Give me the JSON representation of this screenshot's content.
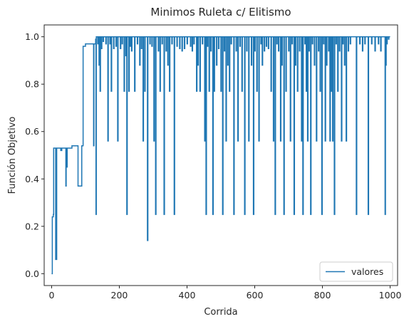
{
  "chart_data": {
    "type": "line",
    "title": "Minimos Ruleta c/ Elitismo",
    "xlabel": "Corrida",
    "ylabel": "Función Objetivo",
    "xlim": [
      -22,
      1022
    ],
    "ylim": [
      -0.05,
      1.05
    ],
    "x_ticks": [
      0,
      200,
      400,
      600,
      800,
      1000
    ],
    "y_ticks": [
      0.0,
      0.2,
      0.4,
      0.6,
      0.8,
      1.0
    ],
    "x_tick_labels": [
      "0",
      "200",
      "400",
      "600",
      "800",
      "1000"
    ],
    "y_tick_labels": [
      "0.0",
      "0.2",
      "0.4",
      "0.6",
      "0.8",
      "1.0"
    ],
    "grid": false,
    "legend_position": "lower-right",
    "line_color": "#1f77b4",
    "series": [
      {
        "name": "valores",
        "base": [
          [
            0,
            0.0
          ],
          [
            2,
            0.24
          ],
          [
            5,
            0.25
          ],
          [
            6,
            0.53
          ],
          [
            10,
            0.53
          ],
          [
            12,
            0.06
          ],
          [
            14,
            0.06
          ],
          [
            15,
            0.53
          ],
          [
            25,
            0.53
          ],
          [
            27,
            0.52
          ],
          [
            30,
            0.53
          ],
          [
            40,
            0.53
          ],
          [
            42,
            0.37
          ],
          [
            43,
            0.53
          ],
          [
            45,
            0.45
          ],
          [
            46,
            0.53
          ],
          [
            55,
            0.53
          ],
          [
            60,
            0.54
          ],
          [
            75,
            0.54
          ],
          [
            78,
            0.37
          ],
          [
            88,
            0.37
          ],
          [
            89,
            0.54
          ],
          [
            92,
            0.54
          ],
          [
            93,
            0.96
          ],
          [
            100,
            0.97
          ],
          [
            120,
            0.97
          ],
          [
            124,
            0.54
          ],
          [
            125,
            0.97
          ],
          [
            130,
            0.99
          ],
          [
            132,
            1.0
          ],
          [
            1000,
            1.0
          ]
        ],
        "dips": [
          [
            131,
            0.25
          ],
          [
            136,
            0.97
          ],
          [
            140,
            0.88
          ],
          [
            143,
            0.77
          ],
          [
            147,
            0.95
          ],
          [
            152,
            0.98
          ],
          [
            160,
            0.97
          ],
          [
            166,
            0.56
          ],
          [
            172,
            0.97
          ],
          [
            176,
            0.77
          ],
          [
            183,
            0.95
          ],
          [
            190,
            0.96
          ],
          [
            195,
            0.56
          ],
          [
            203,
            0.95
          ],
          [
            208,
            0.97
          ],
          [
            214,
            0.77
          ],
          [
            219,
            0.92
          ],
          [
            222,
            0.25
          ],
          [
            228,
            0.77
          ],
          [
            232,
            0.96
          ],
          [
            236,
            0.94
          ],
          [
            245,
            0.77
          ],
          [
            253,
            0.97
          ],
          [
            260,
            0.88
          ],
          [
            265,
            0.95
          ],
          [
            270,
            0.56
          ],
          [
            275,
            0.77
          ],
          [
            283,
            0.14
          ],
          [
            290,
            0.97
          ],
          [
            296,
            0.96
          ],
          [
            302,
            0.56
          ],
          [
            307,
            0.25
          ],
          [
            315,
            0.94
          ],
          [
            320,
            0.77
          ],
          [
            326,
            0.97
          ],
          [
            332,
            0.25
          ],
          [
            338,
            0.94
          ],
          [
            343,
            0.88
          ],
          [
            348,
            0.77
          ],
          [
            355,
            0.97
          ],
          [
            362,
            0.25
          ],
          [
            370,
            0.96
          ],
          [
            378,
            0.95
          ],
          [
            385,
            0.94
          ],
          [
            392,
            0.95
          ],
          [
            400,
            0.97
          ],
          [
            410,
            0.96
          ],
          [
            415,
            0.94
          ],
          [
            420,
            0.97
          ],
          [
            428,
            0.77
          ],
          [
            432,
            0.88
          ],
          [
            438,
            0.77
          ],
          [
            445,
            0.97
          ],
          [
            452,
            0.56
          ],
          [
            456,
            0.25
          ],
          [
            460,
            0.96
          ],
          [
            465,
            0.77
          ],
          [
            470,
            0.94
          ],
          [
            476,
            0.25
          ],
          [
            480,
            0.77
          ],
          [
            487,
            0.88
          ],
          [
            493,
            0.95
          ],
          [
            500,
            0.77
          ],
          [
            505,
            0.25
          ],
          [
            510,
            0.94
          ],
          [
            515,
            0.56
          ],
          [
            520,
            0.88
          ],
          [
            525,
            0.77
          ],
          [
            530,
            0.97
          ],
          [
            538,
            0.25
          ],
          [
            545,
            0.94
          ],
          [
            550,
            0.56
          ],
          [
            556,
            0.96
          ],
          [
            562,
            0.77
          ],
          [
            570,
            0.25
          ],
          [
            576,
            0.94
          ],
          [
            582,
            0.56
          ],
          [
            590,
            0.88
          ],
          [
            596,
            0.25
          ],
          [
            600,
            0.94
          ],
          [
            606,
            0.77
          ],
          [
            612,
            0.56
          ],
          [
            618,
            0.97
          ],
          [
            622,
            0.88
          ],
          [
            628,
            0.94
          ],
          [
            634,
            0.96
          ],
          [
            640,
            0.95
          ],
          [
            648,
            0.77
          ],
          [
            655,
            0.56
          ],
          [
            660,
            0.25
          ],
          [
            665,
            0.97
          ],
          [
            670,
            0.94
          ],
          [
            676,
            0.56
          ],
          [
            680,
            0.88
          ],
          [
            686,
            0.25
          ],
          [
            692,
            0.77
          ],
          [
            700,
            0.94
          ],
          [
            705,
            0.56
          ],
          [
            710,
            0.97
          ],
          [
            716,
            0.25
          ],
          [
            720,
            0.88
          ],
          [
            726,
            0.77
          ],
          [
            732,
            0.94
          ],
          [
            738,
            0.56
          ],
          [
            742,
            0.25
          ],
          [
            748,
            0.97
          ],
          [
            752,
            0.77
          ],
          [
            756,
            0.56
          ],
          [
            760,
            0.94
          ],
          [
            765,
            0.25
          ],
          [
            770,
            0.97
          ],
          [
            776,
            0.88
          ],
          [
            782,
            0.56
          ],
          [
            788,
            0.94
          ],
          [
            793,
            0.77
          ],
          [
            798,
            0.25
          ],
          [
            803,
            0.97
          ],
          [
            808,
            0.56
          ],
          [
            812,
            0.88
          ],
          [
            818,
            0.94
          ],
          [
            822,
            0.56
          ],
          [
            826,
            0.77
          ],
          [
            830,
            0.56
          ],
          [
            835,
            0.25
          ],
          [
            840,
            0.97
          ],
          [
            845,
            0.77
          ],
          [
            850,
            0.94
          ],
          [
            856,
            0.56
          ],
          [
            860,
            0.97
          ],
          [
            865,
            0.88
          ],
          [
            870,
            0.56
          ],
          [
            876,
            0.94
          ],
          [
            882,
            0.97
          ],
          [
            900,
            0.25
          ],
          [
            910,
            0.97
          ],
          [
            918,
            0.94
          ],
          [
            925,
            0.97
          ],
          [
            935,
            0.25
          ],
          [
            945,
            0.97
          ],
          [
            955,
            0.94
          ],
          [
            965,
            0.97
          ],
          [
            972,
            0.94
          ],
          [
            985,
            0.25
          ],
          [
            987,
            0.88
          ],
          [
            990,
            0.97
          ],
          [
            995,
            0.99
          ]
        ]
      }
    ]
  }
}
